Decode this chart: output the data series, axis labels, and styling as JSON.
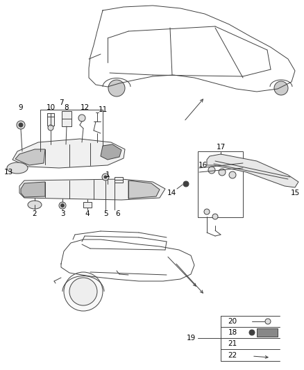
{
  "bg_color": "#ffffff",
  "lc": "#404040",
  "lw": 0.7,
  "fig_w": 4.38,
  "fig_h": 5.33,
  "dpi": 100,
  "xlim": [
    0,
    438
  ],
  "ylim": [
    0,
    533
  ]
}
